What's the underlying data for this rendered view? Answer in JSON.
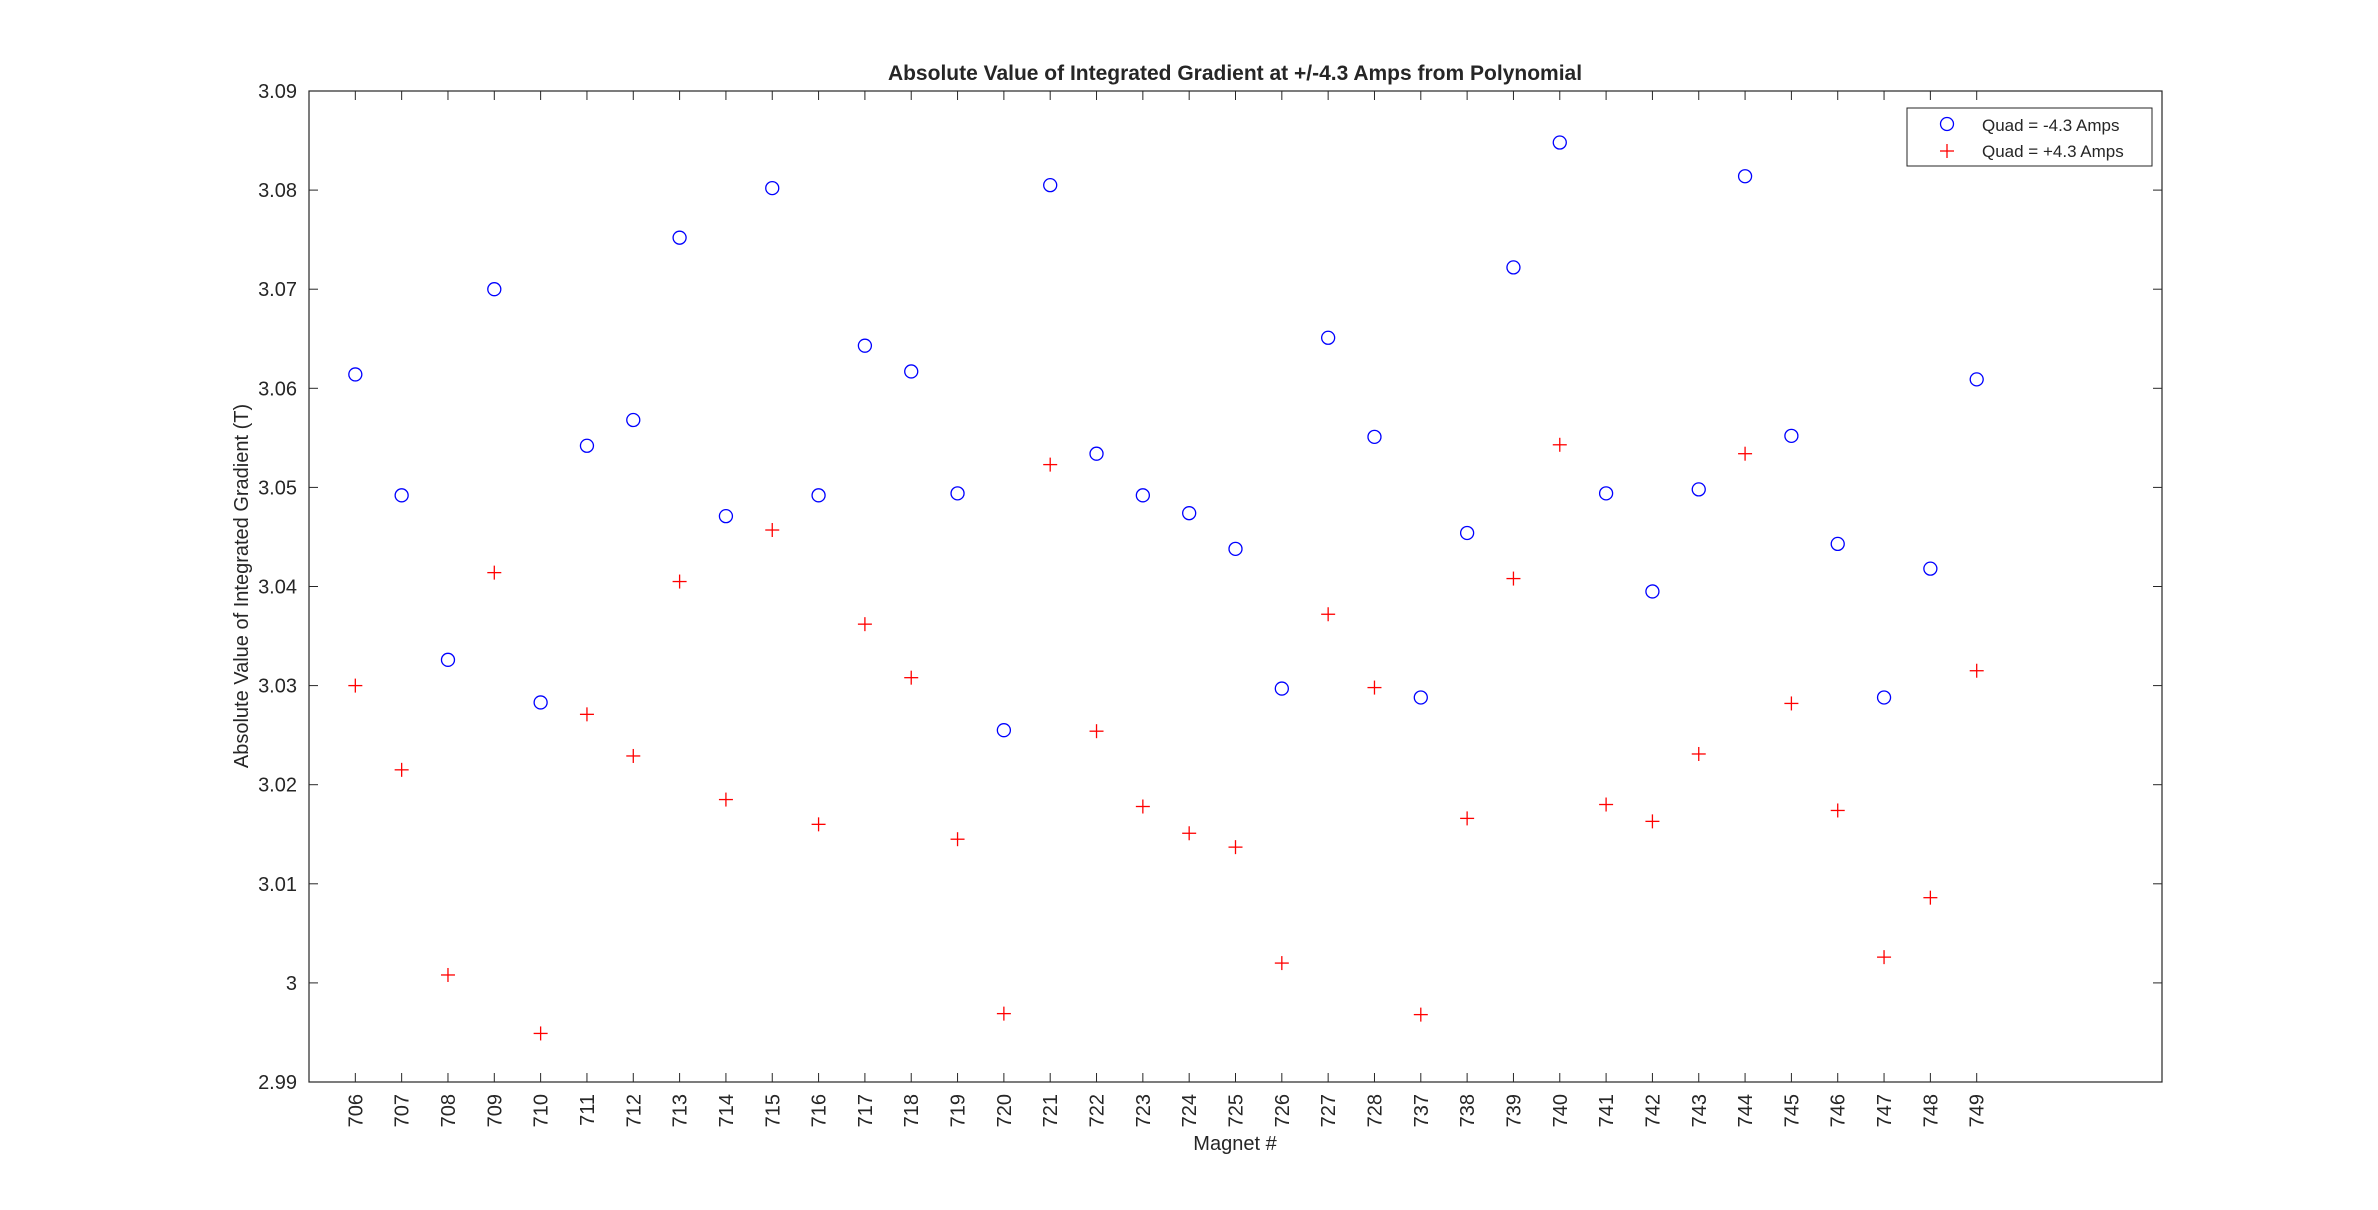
{
  "chart_data": {
    "type": "scatter",
    "title": "Absolute Value of Integrated Gradient at +/-4.3 Amps from Polynomial",
    "xlabel": "Magnet #",
    "ylabel": "Absolute Value of Integrated Gradient (T)",
    "categories": [
      "706",
      "707",
      "708",
      "709",
      "710",
      "711",
      "712",
      "713",
      "714",
      "715",
      "716",
      "717",
      "718",
      "719",
      "720",
      "721",
      "722",
      "723",
      "724",
      "725",
      "726",
      "727",
      "728",
      "737",
      "738",
      "739",
      "740",
      "741",
      "742",
      "743",
      "744",
      "745",
      "746",
      "747",
      "748",
      "749"
    ],
    "xlim": [
      0,
      40
    ],
    "ylim": [
      2.99,
      3.09
    ],
    "yticks": [
      "2.99",
      "3",
      "3.01",
      "3.02",
      "3.03",
      "3.04",
      "3.05",
      "3.06",
      "3.07",
      "3.08",
      "3.09"
    ],
    "grid": false,
    "legend_position": "top-right",
    "series": [
      {
        "name": "Quad = -4.3 Amps",
        "marker": "circle",
        "color": "#0000ff",
        "values": [
          3.0614,
          3.0492,
          3.0326,
          3.07,
          3.0283,
          3.0542,
          3.0568,
          3.0752,
          3.0471,
          3.0802,
          3.0492,
          3.0643,
          3.0617,
          3.0494,
          3.0255,
          3.0805,
          3.0534,
          3.0492,
          3.0474,
          3.0438,
          3.0297,
          3.0651,
          3.0551,
          3.0288,
          3.0454,
          3.0722,
          3.0848,
          3.0494,
          3.0395,
          3.0498,
          3.0814,
          3.0552,
          3.0443,
          3.0288,
          3.0418,
          3.0609
        ]
      },
      {
        "name": "Quad = +4.3 Amps",
        "marker": "plus",
        "color": "#ff0000",
        "values": [
          3.03,
          3.0215,
          3.0008,
          3.0414,
          2.9949,
          3.0271,
          3.0229,
          3.0405,
          3.0185,
          3.0457,
          3.016,
          3.0362,
          3.0308,
          3.0145,
          2.9969,
          3.0523,
          3.0254,
          3.0178,
          3.0151,
          3.0137,
          3.002,
          3.0372,
          3.0298,
          2.9968,
          3.0166,
          3.0408,
          3.0543,
          3.018,
          3.0163,
          3.0231,
          3.0534,
          3.0282,
          3.0174,
          3.0026,
          3.0086,
          3.0315
        ]
      }
    ]
  }
}
